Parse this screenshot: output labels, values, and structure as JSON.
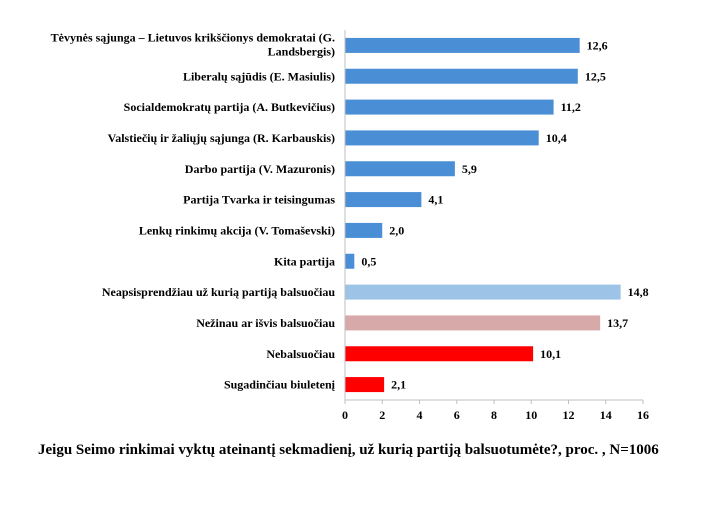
{
  "chart_data": {
    "type": "bar",
    "orientation": "horizontal",
    "categories": [
      "Tėvynės sąjunga – Lietuvos krikščionys demokratai (G. Landsbergis)",
      "Liberalų sąjūdis (E. Masiulis)",
      "Socialdemokratų partija (A. Butkevičius)",
      "Valstiečių ir žaliųjų sąjunga (R. Karbauskis)",
      "Darbo partija (V. Mazuronis)",
      "Partija Tvarka ir teisingumas",
      "Lenkų rinkimų akcija (V. Tomaševski)",
      "Kita partija",
      "Neapsisprendžiau už kurią partiją balsuočiau",
      "Nežinau ar išvis balsuočiau",
      "Nebalsuočiau",
      "Sugadinčiau biuletenį"
    ],
    "values": [
      12.6,
      12.5,
      11.2,
      10.4,
      5.9,
      4.1,
      2.0,
      0.5,
      14.8,
      13.7,
      10.1,
      2.1
    ],
    "value_labels": [
      "12,6",
      "12,5",
      "11,2",
      "10,4",
      "5,9",
      "4,1",
      "2,0",
      "0,5",
      "14,8",
      "13,7",
      "10,1",
      "2,1"
    ],
    "bar_colors": [
      "#4a8fd6",
      "#4a8fd6",
      "#4a8fd6",
      "#4a8fd6",
      "#4a8fd6",
      "#4a8fd6",
      "#4a8fd6",
      "#4a8fd6",
      "#9dc3e6",
      "#d8a9a9",
      "#ff0000",
      "#ff0000"
    ],
    "xlim": [
      0,
      16
    ],
    "xticks": [
      0,
      2,
      4,
      6,
      8,
      10,
      12,
      14,
      16
    ],
    "grid": false,
    "legend": "none",
    "caption": "Jeigu Seimo rinkimai vyktų ateinantį sekmadienį, už kurią partiją balsuotumėte?, proc. , N=1006"
  }
}
